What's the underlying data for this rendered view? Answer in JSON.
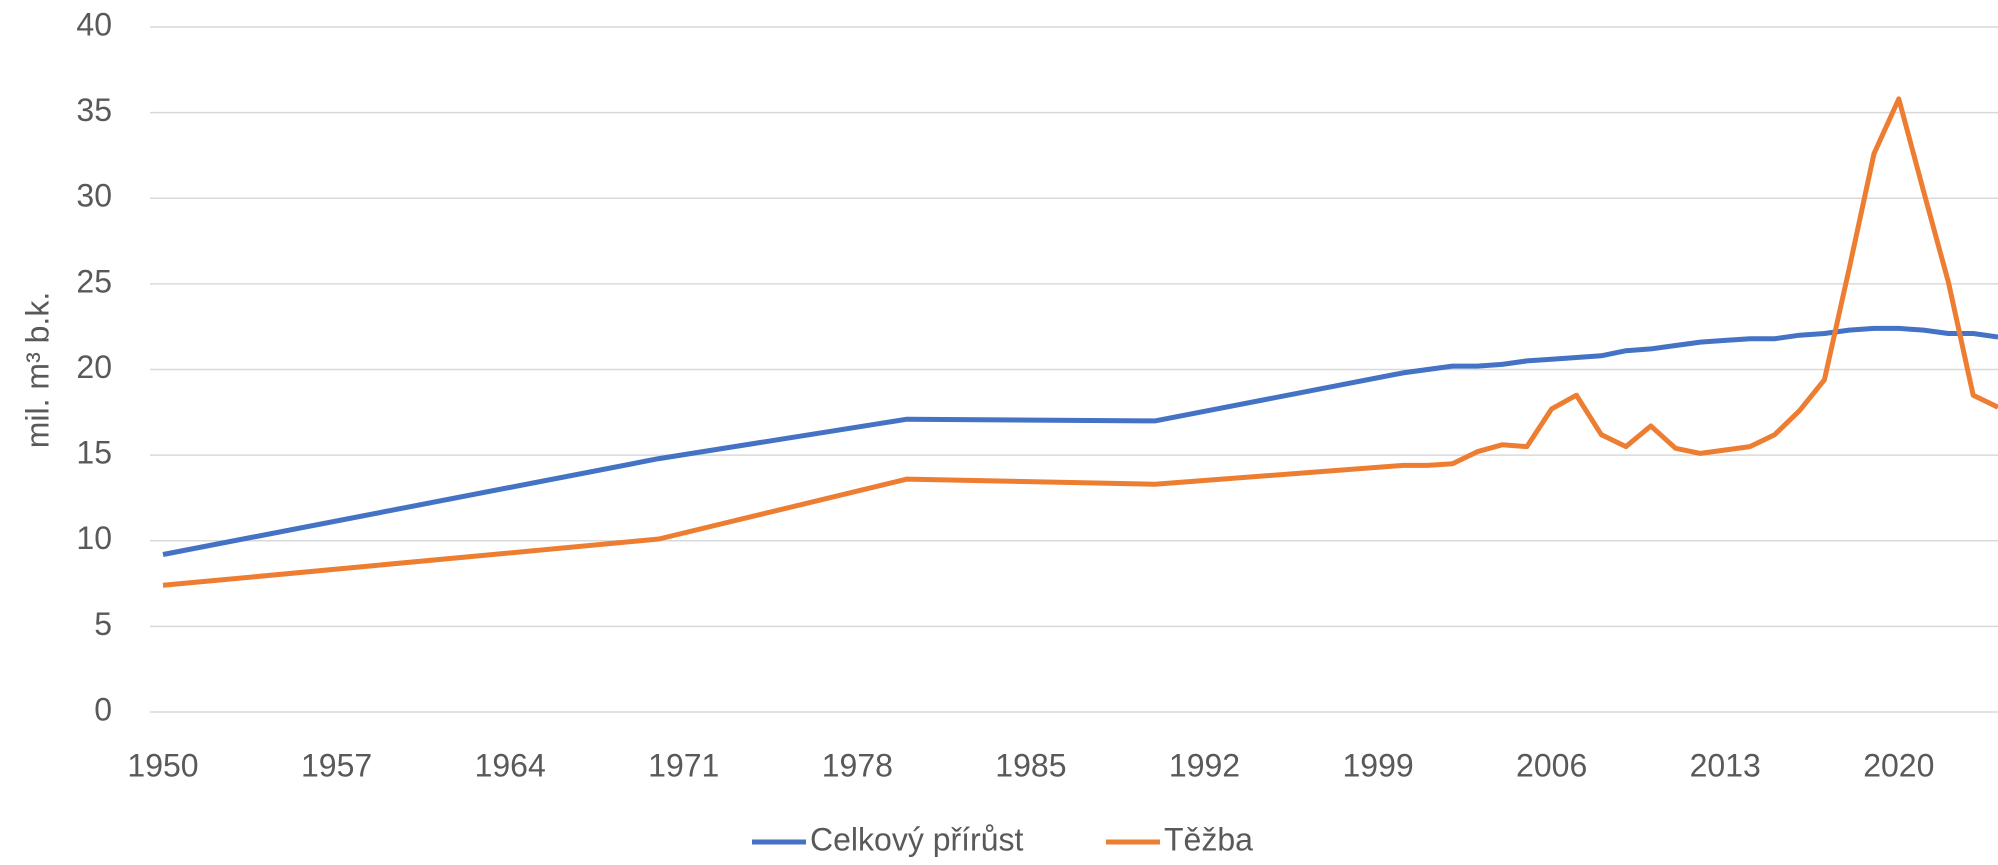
{
  "chart_data": {
    "type": "line",
    "y_label": "mil. m³ b.k.",
    "x": [
      1950,
      1970,
      1980,
      1990,
      2000,
      2001,
      2002,
      2003,
      2004,
      2005,
      2006,
      2007,
      2008,
      2009,
      2010,
      2011,
      2012,
      2013,
      2014,
      2015,
      2016,
      2017,
      2018,
      2019,
      2020,
      2021,
      2022,
      2023,
      2024
    ],
    "series": [
      {
        "name": "Celkový přírůst",
        "color": "#4472c4",
        "values": [
          9.2,
          14.8,
          17.1,
          17.0,
          19.8,
          20.0,
          20.2,
          20.2,
          20.3,
          20.5,
          20.6,
          20.7,
          20.8,
          21.1,
          21.2,
          21.4,
          21.6,
          21.7,
          21.8,
          21.8,
          22.0,
          22.1,
          22.3,
          22.4,
          22.4,
          22.3,
          22.1,
          22.1,
          21.9
        ]
      },
      {
        "name": "Těžba",
        "color": "#ed7d31",
        "values": [
          7.4,
          10.1,
          13.6,
          13.3,
          14.4,
          14.4,
          14.5,
          15.2,
          15.6,
          15.5,
          17.7,
          18.5,
          16.2,
          15.5,
          16.7,
          15.4,
          15.1,
          15.3,
          15.5,
          16.2,
          17.6,
          19.4,
          25.9,
          32.6,
          35.8,
          30.4,
          25.1,
          18.5,
          17.8
        ]
      }
    ],
    "xlim": [
      1950,
      2024
    ],
    "xticks": [
      1950,
      1957,
      1964,
      1971,
      1978,
      1985,
      1992,
      1999,
      2006,
      2013,
      2020
    ],
    "ylim": [
      0,
      40
    ],
    "yticks": [
      0,
      5,
      10,
      15,
      20,
      25,
      30,
      35,
      40
    ],
    "grid": true,
    "legend": "bottom"
  }
}
